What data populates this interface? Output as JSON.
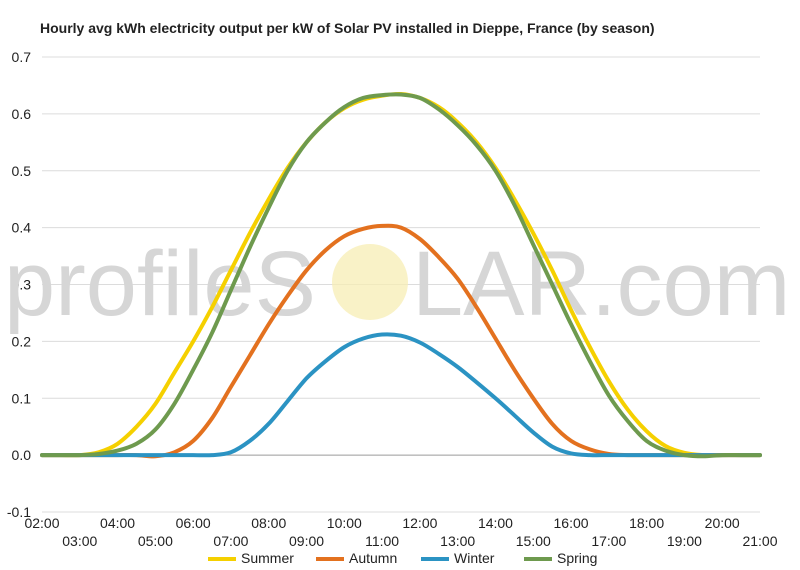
{
  "watermark": {
    "left": "profileS",
    "right": "LAR.com"
  },
  "chart_data": {
    "type": "line",
    "title": "Hourly avg kWh electricity output per kW of Solar PV installed in Dieppe, France (by season)",
    "xlabel": "",
    "ylabel": "",
    "x_hours": [
      2,
      2.5,
      3,
      3.5,
      4,
      4.5,
      5,
      5.5,
      6,
      6.5,
      7,
      7.5,
      8,
      8.5,
      9,
      9.5,
      10,
      10.5,
      11,
      11.5,
      12,
      12.5,
      13,
      13.5,
      14,
      14.5,
      15,
      15.5,
      16,
      16.5,
      17,
      17.5,
      18,
      18.5,
      19,
      19.5,
      20,
      20.5,
      21
    ],
    "x_tick_labels": [
      "02:00",
      "03:00",
      "04:00",
      "05:00",
      "06:00",
      "07:00",
      "08:00",
      "09:00",
      "10:00",
      "11:00",
      "12:00",
      "13:00",
      "14:00",
      "15:00",
      "16:00",
      "17:00",
      "18:00",
      "19:00",
      "20:00",
      "21:00"
    ],
    "x_tick_hours": [
      2,
      3,
      4,
      5,
      6,
      7,
      8,
      9,
      10,
      11,
      12,
      13,
      14,
      15,
      16,
      17,
      18,
      19,
      20,
      21
    ],
    "xlim": [
      2,
      21
    ],
    "ylim": [
      -0.1,
      0.7
    ],
    "y_ticks": [
      -0.1,
      0.0,
      0.1,
      0.2,
      0.3,
      0.4,
      0.5,
      0.6,
      0.7
    ],
    "y_tick_labels": [
      "-0.1",
      "0.0",
      "0.1",
      "0.2",
      "0.3",
      "0.4",
      "0.5",
      "0.6",
      "0.7"
    ],
    "grid": true,
    "legend_position": "bottom",
    "series": [
      {
        "name": "Summer",
        "color": "#f5d000",
        "values": [
          0,
          0,
          0,
          0.005,
          0.02,
          0.05,
          0.09,
          0.145,
          0.2,
          0.26,
          0.325,
          0.39,
          0.45,
          0.505,
          0.55,
          0.585,
          0.61,
          0.625,
          0.632,
          0.635,
          0.628,
          0.612,
          0.585,
          0.55,
          0.505,
          0.45,
          0.39,
          0.325,
          0.255,
          0.19,
          0.13,
          0.08,
          0.042,
          0.016,
          0.004,
          0,
          0,
          0,
          0
        ]
      },
      {
        "name": "Autumn",
        "color": "#e3711f",
        "values": [
          0,
          0,
          0,
          0,
          0,
          0,
          -0.002,
          0.005,
          0.025,
          0.065,
          0.12,
          0.175,
          0.23,
          0.28,
          0.325,
          0.36,
          0.385,
          0.398,
          0.403,
          0.4,
          0.38,
          0.348,
          0.31,
          0.26,
          0.205,
          0.15,
          0.1,
          0.055,
          0.025,
          0.01,
          0.002,
          0,
          0,
          0,
          0,
          0,
          0,
          0,
          0
        ]
      },
      {
        "name": "Winter",
        "color": "#2b93c3",
        "values": [
          0,
          0,
          0,
          0,
          0,
          0,
          0,
          0,
          0,
          0,
          0.005,
          0.025,
          0.055,
          0.095,
          0.135,
          0.165,
          0.19,
          0.205,
          0.212,
          0.21,
          0.198,
          0.178,
          0.155,
          0.128,
          0.1,
          0.07,
          0.04,
          0.015,
          0.003,
          0,
          0,
          0,
          0,
          0,
          0,
          0,
          0,
          0,
          0
        ]
      },
      {
        "name": "Spring",
        "color": "#6e9a4e",
        "values": [
          0,
          0,
          0,
          0.002,
          0.008,
          0.02,
          0.045,
          0.09,
          0.15,
          0.215,
          0.29,
          0.365,
          0.435,
          0.5,
          0.55,
          0.585,
          0.612,
          0.628,
          0.633,
          0.634,
          0.628,
          0.608,
          0.58,
          0.545,
          0.5,
          0.44,
          0.37,
          0.3,
          0.23,
          0.165,
          0.105,
          0.06,
          0.025,
          0.008,
          0,
          -0.002,
          0,
          0,
          0
        ]
      }
    ]
  }
}
